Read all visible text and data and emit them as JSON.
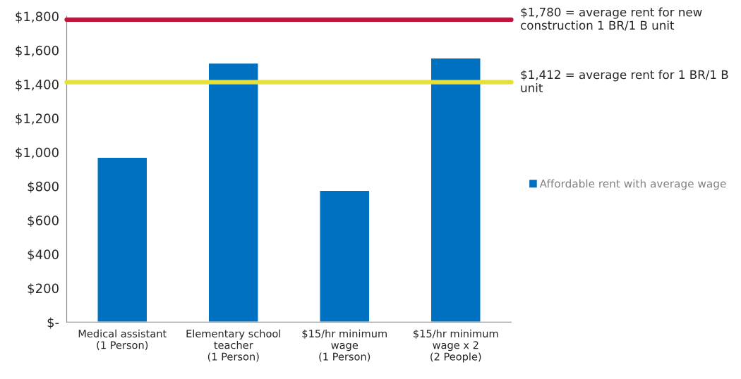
{
  "chart_data": {
    "type": "bar",
    "categories": [
      "Medical assistant\n(1 Person)",
      "Elementary school\nteacher\n(1 Person)",
      "$15/hr minimum\nwage\n(1 Person)",
      "$15/hr minimum\nwage x 2\n(2 People)"
    ],
    "series": [
      {
        "name": "Affordable rent with average wage",
        "color": "#0070c0",
        "values": [
          970,
          1525,
          775,
          1555
        ]
      }
    ],
    "ylim": [
      0,
      1800
    ],
    "yticks": [
      {
        "value": 0,
        "label": "$-"
      },
      {
        "value": 200,
        "label": "$200"
      },
      {
        "value": 400,
        "label": "$400"
      },
      {
        "value": 600,
        "label": "$600"
      },
      {
        "value": 800,
        "label": "$800"
      },
      {
        "value": 1000,
        "label": "$1,000"
      },
      {
        "value": 1200,
        "label": "$1,200"
      },
      {
        "value": 1400,
        "label": "$1,400"
      },
      {
        "value": 1600,
        "label": "$1,600"
      },
      {
        "value": 1800,
        "label": "$1,800"
      }
    ],
    "ref_lines": [
      {
        "axis": "y",
        "value": 1780,
        "label": "$1,780 = average rent for new construction 1 BR/1 B unit",
        "color": "#c0143c"
      },
      {
        "axis": "y",
        "value": 1412,
        "label": "$1,412 = average rent for 1 BR/1 B unit",
        "color": "#e8e03a"
      }
    ],
    "grid": false,
    "legend": "right"
  }
}
